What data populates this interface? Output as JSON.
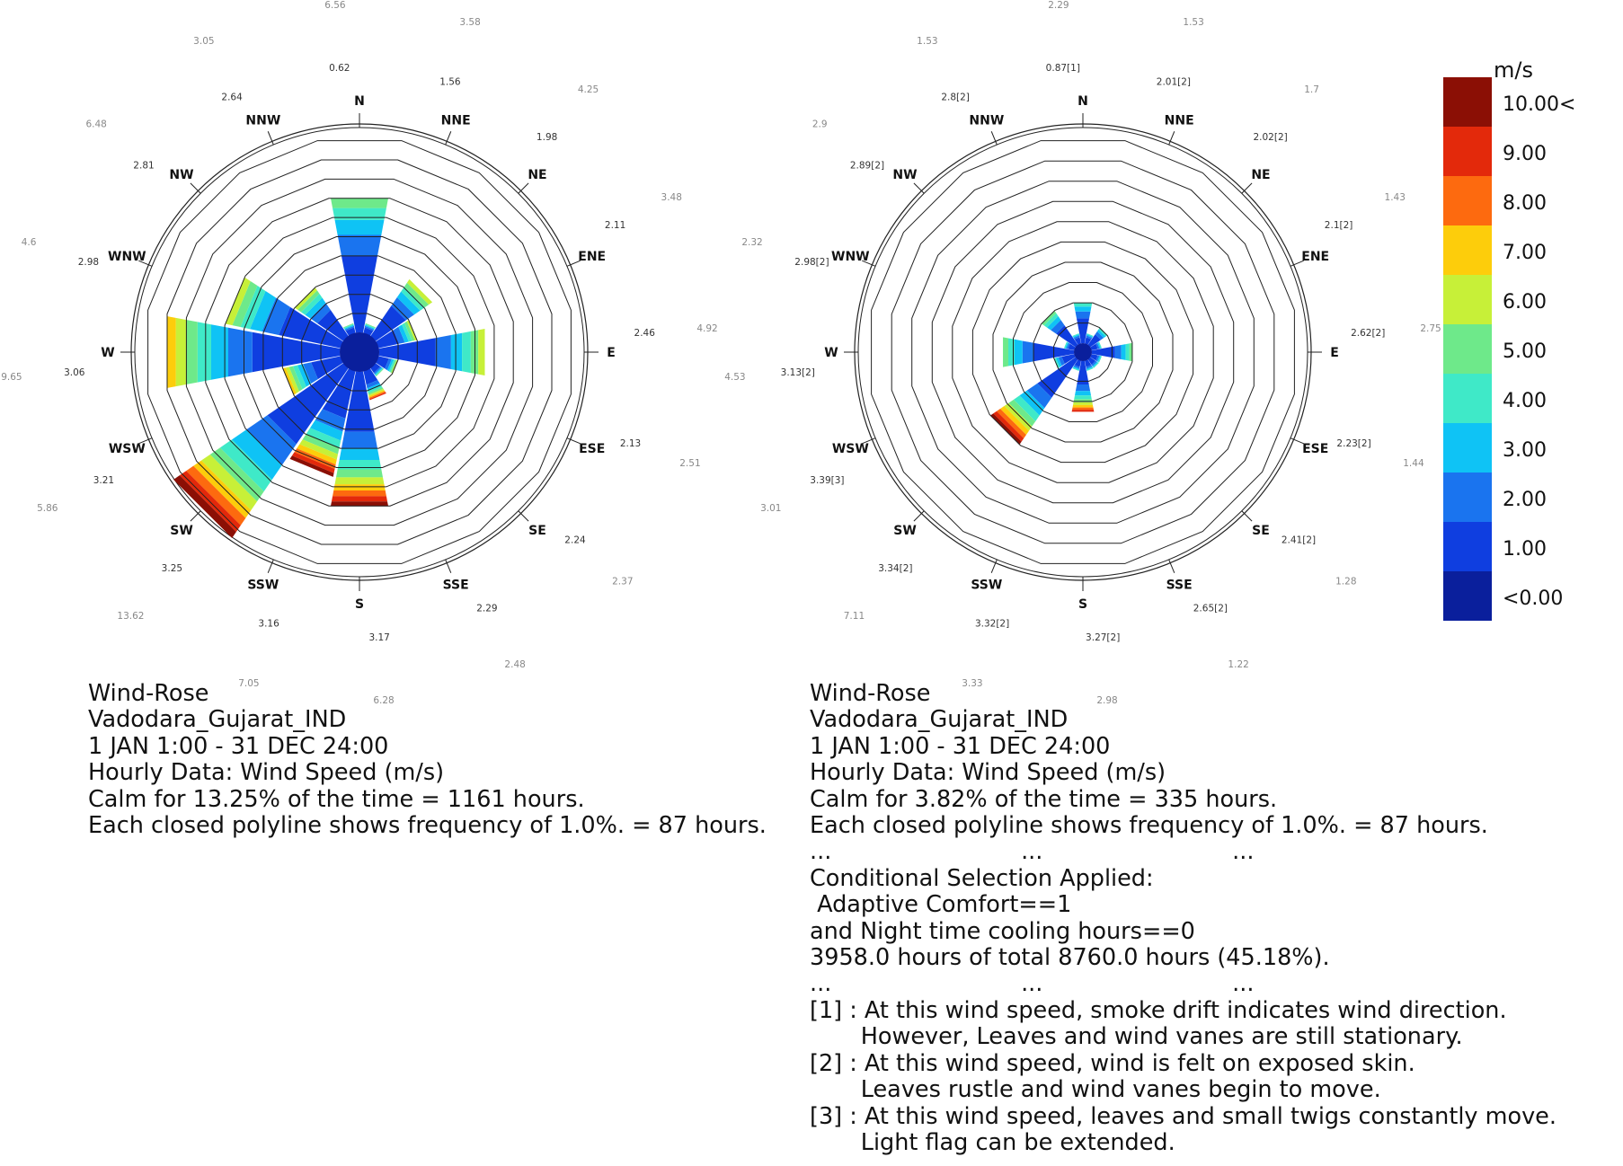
{
  "directions": [
    "N",
    "NNE",
    "NE",
    "ENE",
    "E",
    "ESE",
    "SE",
    "SSE",
    "S",
    "SSW",
    "SW",
    "WSW",
    "W",
    "WNW",
    "NW",
    "NNW"
  ],
  "legend": {
    "unit": "m/s",
    "labels": [
      "10.00<",
      "9.00",
      "8.00",
      "7.00",
      "6.00",
      "5.00",
      "4.00",
      "3.00",
      "2.00",
      "1.00",
      "<0.00"
    ],
    "colors": [
      "#8b0f05",
      "#e3290b",
      "#fd6a0f",
      "#fdcd0b",
      "#c7f038",
      "#6ee98a",
      "#3fe9c8",
      "#0fc3f5",
      "#1a74ef",
      "#0f3ee0",
      "#0a1f9c"
    ]
  },
  "chart_data": [
    {
      "type": "wind-rose",
      "directions": [
        "N",
        "NNE",
        "NE",
        "ENE",
        "E",
        "ESE",
        "SE",
        "SSE",
        "S",
        "SSW",
        "SW",
        "WSW",
        "W",
        "WNW",
        "NW",
        "NNW"
      ],
      "frequency_ring_step_percent": 1.0,
      "frequency_ring_count": 10,
      "frequency_percent": [
        7.0,
        0.5,
        3.5,
        2.0,
        5.5,
        1.0,
        0.5,
        1.5,
        7.0,
        5.5,
        10.5,
        3.0,
        9.0,
        6.0,
        3.0,
        0.5
      ],
      "wind_speed_top": [
        5.0,
        5.0,
        6.0,
        6.0,
        6.0,
        6.0,
        5.0,
        9.0,
        10.0,
        10.0,
        10.0,
        7.0,
        7.0,
        6.0,
        6.0,
        5.0
      ],
      "outer_labels": [
        "6.56",
        "3.58",
        "4.25",
        "3.48",
        "4.92",
        "2.51",
        "2.37",
        "2.48",
        "6.28",
        "7.05",
        "13.62",
        "5.86",
        "9.65",
        "4.6",
        "6.48",
        "3.05"
      ],
      "inner_labels": [
        "0.62",
        "1.56",
        "1.98",
        "2.11",
        "2.46",
        "2.13",
        "2.24",
        "2.29",
        "3.17",
        "3.16",
        "3.25",
        "3.21",
        "3.06",
        "2.98",
        "2.81",
        "2.64"
      ],
      "caption": [
        "Wind-Rose",
        "Vadodara_Gujarat_IND",
        "1 JAN 1:00 - 31 DEC 24:00",
        "Hourly Data: Wind Speed (m/s)",
        "Calm for 13.25% of the time = 1161 hours.",
        "Each closed polyline shows frequency of 1.0%. = 87 hours."
      ]
    },
    {
      "type": "wind-rose",
      "directions": [
        "N",
        "NNE",
        "NE",
        "ENE",
        "E",
        "ESE",
        "SE",
        "SSE",
        "S",
        "SSW",
        "SW",
        "WSW",
        "W",
        "WNW",
        "NW",
        "NNW"
      ],
      "frequency_ring_step_percent": 1.0,
      "frequency_ring_count": 10,
      "frequency_percent": [
        2.0,
        0.5,
        1.0,
        0.5,
        2.0,
        0.5,
        0.5,
        0.5,
        2.5,
        0.5,
        5.0,
        1.0,
        3.5,
        0.5,
        2.0,
        0.5
      ],
      "wind_speed_top": [
        4.0,
        4.0,
        4.0,
        4.0,
        5.0,
        4.0,
        4.0,
        4.0,
        9.0,
        4.0,
        10.0,
        4.0,
        5.0,
        4.0,
        5.0,
        4.0
      ],
      "outer_labels": [
        "2.29",
        "1.53",
        "1.7",
        "1.43",
        "2.75",
        "1.44",
        "1.28",
        "1.22",
        "2.98",
        "3.33",
        "7.11",
        "3.01",
        "4.53",
        "2.32",
        "2.9",
        "1.53"
      ],
      "inner_labels": [
        "0.87[1]",
        "2.01[2]",
        "2.02[2]",
        "2.1[2]",
        "2.62[2]",
        "2.23[2]",
        "2.41[2]",
        "2.65[2]",
        "3.27[2]",
        "3.32[2]",
        "3.34[2]",
        "3.39[3]",
        "3.13[2]",
        "2.98[2]",
        "2.89[2]",
        "2.8[2]"
      ],
      "caption": [
        "Wind-Rose",
        "Vadodara_Gujarat_IND",
        "1 JAN 1:00 - 31 DEC 24:00",
        "Hourly Data: Wind Speed (m/s)",
        "Calm for 3.82% of the time = 335 hours.",
        "Each closed polyline shows frequency of 1.0%. = 87 hours.",
        "...                          ...                          ...",
        "Conditional Selection Applied:",
        " Adaptive Comfort==1",
        "and Night time cooling hours==0",
        "3958.0 hours of total 8760.0 hours (45.18%).",
        "...                          ...                          ...",
        "[1] : At this wind speed, smoke drift indicates wind direction.",
        "       However, Leaves and wind vanes are still stationary.",
        "[2] : At this wind speed, wind is felt on exposed skin.",
        "       Leaves rustle and wind vanes begin to move.",
        "[3] : At this wind speed, leaves and small twigs constantly move.",
        "       Light flag can be extended."
      ]
    }
  ]
}
